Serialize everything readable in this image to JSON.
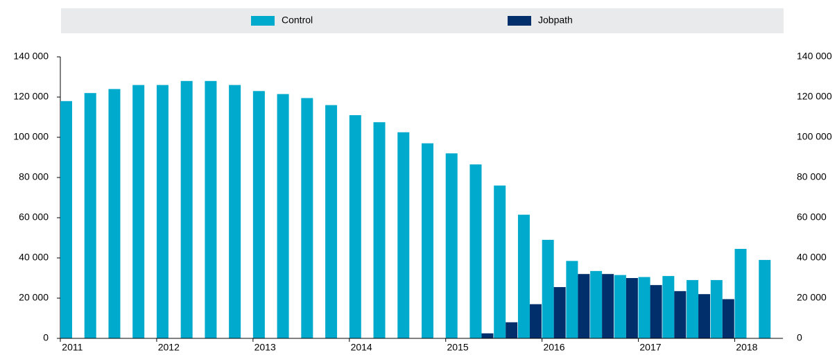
{
  "chart_data": {
    "type": "bar",
    "categories": [
      "2011",
      null,
      null,
      null,
      "2012",
      null,
      null,
      null,
      "2013",
      null,
      null,
      null,
      "2014",
      null,
      null,
      null,
      "2015",
      null,
      null,
      null,
      "2016",
      null,
      null,
      null,
      "2017",
      null,
      null,
      null,
      "2018",
      null
    ],
    "series": [
      {
        "name": "Control",
        "color": "#00aacc",
        "values": [
          118000,
          122000,
          124000,
          126000,
          126000,
          128000,
          128000,
          126000,
          123000,
          121500,
          119500,
          116000,
          111000,
          107500,
          102500,
          97000,
          92000,
          86500,
          76000,
          61500,
          49000,
          38500,
          33500,
          31500,
          30500,
          31000,
          29000,
          29000,
          44500,
          39000
        ]
      },
      {
        "name": "Jobpath",
        "color": "#002f6c",
        "values": [
          null,
          null,
          null,
          null,
          null,
          null,
          null,
          null,
          null,
          null,
          null,
          null,
          null,
          null,
          null,
          null,
          null,
          2500,
          8000,
          17000,
          25500,
          32000,
          32000,
          30000,
          26500,
          23500,
          22000,
          19500,
          null,
          null
        ]
      }
    ],
    "ylim": [
      0,
      140000
    ],
    "yticks": [
      0,
      {
        "value": 20000,
        "label": "20 000"
      },
      {
        "value": 40000,
        "label": "40 000"
      },
      {
        "value": 60000,
        "label": "60 000"
      },
      {
        "value": 80000,
        "label": "80 000"
      },
      {
        "value": 100000,
        "label": "100 000"
      },
      {
        "value": 120000,
        "label": "120 000"
      },
      {
        "value": 140000,
        "label": "140 000"
      }
    ],
    "y2lim": [
      0,
      140000
    ],
    "y2ticks": [
      0,
      {
        "value": 20000,
        "label": "20 000"
      },
      {
        "value": 40000,
        "label": "40 000"
      },
      {
        "value": 60000,
        "label": "60 000"
      },
      {
        "value": 80000,
        "label": "80 000"
      },
      {
        "value": 100000,
        "label": "100 000"
      },
      {
        "value": 120000,
        "label": "120 000"
      },
      {
        "value": 140000,
        "label": "140 000"
      }
    ],
    "legend": "top"
  }
}
